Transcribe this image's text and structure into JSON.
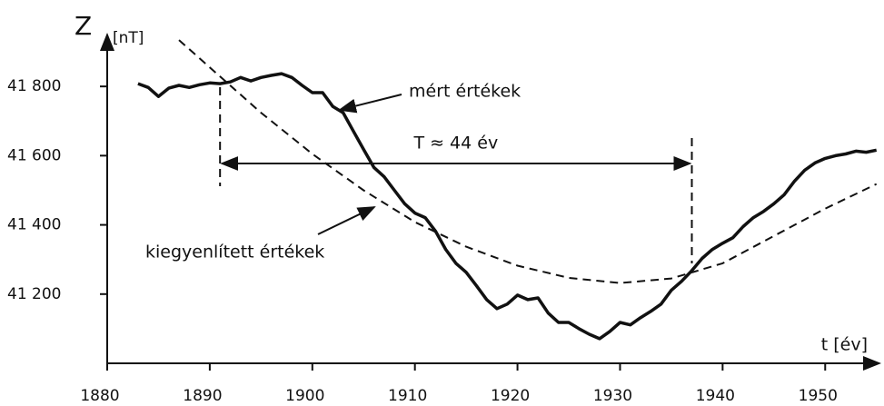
{
  "chart_data": {
    "type": "line",
    "y_label": "Z",
    "y_unit": "[nT]",
    "x_label": "t [év]",
    "series": [
      {
        "name": "mért értékek",
        "color": "#111111",
        "style": "solid",
        "x": [
          1883,
          1884,
          1885,
          1886,
          1887,
          1888,
          1889,
          1890,
          1891,
          1892,
          1893,
          1894,
          1895,
          1896,
          1897,
          1898,
          1899,
          1900,
          1901,
          1902,
          1903,
          1904,
          1905,
          1906,
          1907,
          1908,
          1909,
          1910,
          1911,
          1912,
          1913,
          1914,
          1915,
          1916,
          1917,
          1918,
          1919,
          1920,
          1921,
          1922,
          1923,
          1924,
          1925,
          1926,
          1927,
          1928,
          1929,
          1930,
          1931,
          1932,
          1933,
          1934,
          1935,
          1936,
          1937,
          1938,
          1939,
          1940,
          1941,
          1942,
          1943,
          1944,
          1945,
          1946,
          1947,
          1948,
          1949,
          1950,
          1951,
          1952,
          1953,
          1954,
          1955
        ],
        "values": [
          41808,
          41797,
          41771,
          41795,
          41803,
          41797,
          41805,
          41810,
          41808,
          41813,
          41826,
          41816,
          41826,
          41832,
          41837,
          41826,
          41803,
          41782,
          41782,
          41742,
          41724,
          41671,
          41618,
          41566,
          41539,
          41500,
          41461,
          41434,
          41421,
          41382,
          41329,
          41289,
          41263,
          41224,
          41184,
          41158,
          41171,
          41197,
          41184,
          41189,
          41145,
          41118,
          41118,
          41100,
          41084,
          41071,
          41092,
          41118,
          41111,
          41132,
          41150,
          41171,
          41211,
          41237,
          41268,
          41303,
          41329,
          41347,
          41363,
          41395,
          41421,
          41439,
          41461,
          41487,
          41526,
          41558,
          41579,
          41592,
          41600,
          41605,
          41613,
          41610,
          41616
        ]
      },
      {
        "name": "kiegyenlített értékek",
        "color": "#111111",
        "style": "dashed",
        "x": [
          1887,
          1890,
          1895,
          1900,
          1905,
          1910,
          1915,
          1920,
          1925,
          1930,
          1935,
          1940,
          1945,
          1950,
          1955
        ],
        "values": [
          41934,
          41855,
          41724,
          41605,
          41500,
          41408,
          41337,
          41282,
          41247,
          41232,
          41245,
          41289,
          41368,
          41447,
          41518
        ]
      }
    ],
    "period": {
      "label": "T ≈ 44 év",
      "x": [
        1891,
        1937
      ]
    },
    "xlim": [
      1880,
      1956
    ],
    "xticks": [
      1880,
      1890,
      1900,
      1910,
      1920,
      1930,
      1940,
      1950
    ],
    "ylim": [
      41000,
      41950
    ],
    "yticks": [
      {
        "value": 41200,
        "label": "41 200"
      },
      {
        "value": 41400,
        "label": "41 400"
      },
      {
        "value": 41600,
        "label": "41 600"
      },
      {
        "value": 41800,
        "label": "41 800"
      }
    ]
  }
}
